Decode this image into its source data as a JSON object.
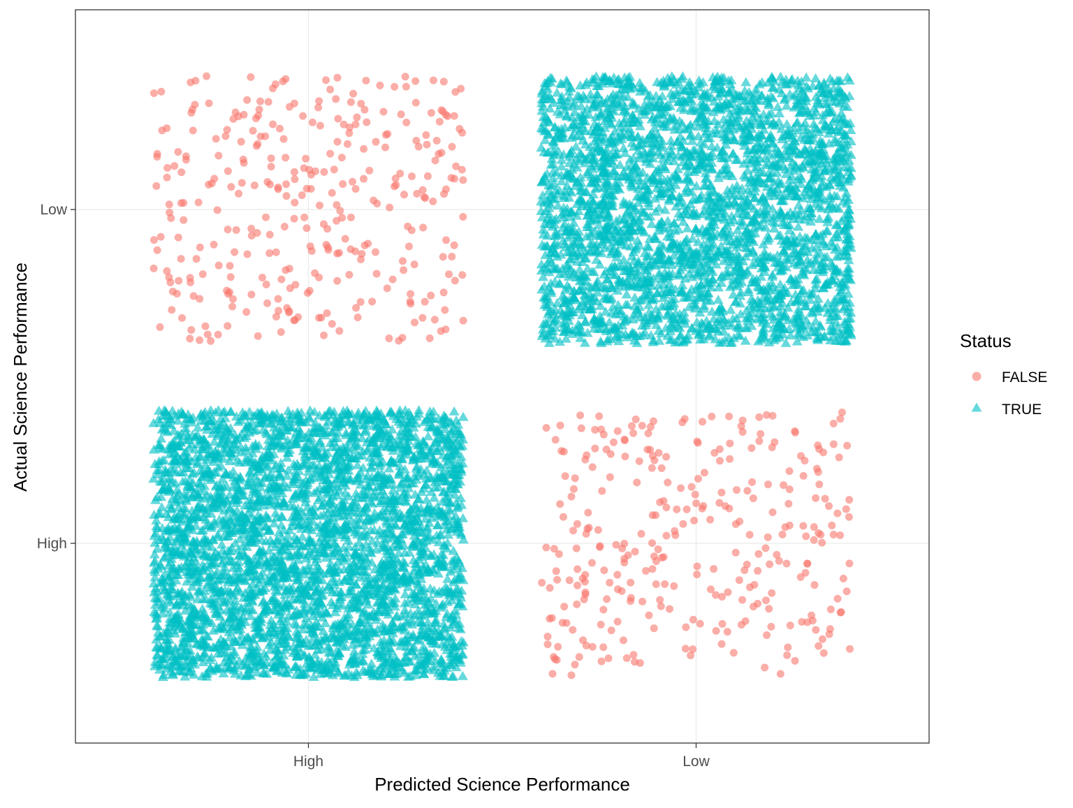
{
  "chart_data": {
    "type": "scatter",
    "title": "",
    "xlabel": "Predicted Science Performance",
    "ylabel": "Actual Science Performance",
    "x_categories": [
      "High",
      "Low"
    ],
    "y_categories": [
      "High",
      "Low"
    ],
    "jitter": 0.4,
    "grid": true,
    "legend": {
      "title": "Status",
      "position": "right",
      "entries": [
        {
          "label": "FALSE",
          "shape": "circle",
          "color": "#F8766D"
        },
        {
          "label": "TRUE",
          "shape": "triangle",
          "color": "#00BFC4"
        }
      ]
    },
    "cells": [
      {
        "x": "High",
        "y": "Low",
        "status": "FALSE",
        "approx_count": 330
      },
      {
        "x": "Low",
        "y": "Low",
        "status": "TRUE",
        "approx_count": 3000
      },
      {
        "x": "High",
        "y": "High",
        "status": "TRUE",
        "approx_count": 3600
      },
      {
        "x": "Low",
        "y": "High",
        "status": "FALSE",
        "approx_count": 310
      }
    ],
    "colors": {
      "FALSE": "#F8766D",
      "TRUE": "#00BFC4"
    }
  }
}
